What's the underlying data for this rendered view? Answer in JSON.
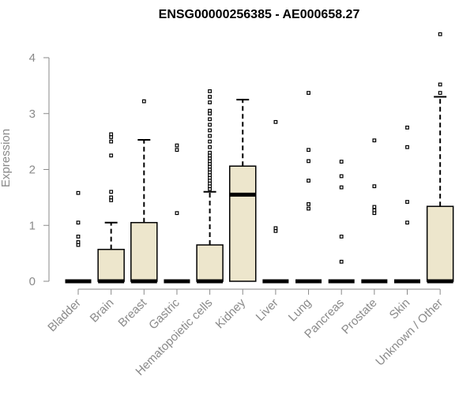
{
  "chart_data": {
    "type": "box",
    "title": "ENSG00000256385 - AE000658.27",
    "ylabel": "Expression",
    "xlabel": "",
    "ylim": [
      0,
      4.5
    ],
    "yticks": [
      "0",
      "1",
      "2",
      "3",
      "4"
    ],
    "grid": false,
    "legend": "none",
    "box_fill": "#ede6cc",
    "line_color": "#000000",
    "axis_color": "#8a8a8a",
    "categories": [
      "Bladder",
      "Brain",
      "Breast",
      "Gastric",
      "Hematopoietic cells",
      "Kidney",
      "Liver",
      "Lung",
      "Pancreas",
      "Prostate",
      "Skin",
      "Unknown / Other"
    ],
    "boxes": [
      {
        "q1": 0,
        "median": 0,
        "q3": 0,
        "whisker_low": 0,
        "whisker_high": 0,
        "outliers": [
          0.65,
          0.7,
          0.8,
          1.05,
          1.58
        ]
      },
      {
        "q1": 0,
        "median": 0,
        "q3": 0.57,
        "whisker_low": 0,
        "whisker_high": 1.05,
        "outliers": [
          1.45,
          1.5,
          1.6,
          2.25,
          2.5,
          2.58,
          2.63
        ]
      },
      {
        "q1": 0,
        "median": 0,
        "q3": 1.05,
        "whisker_low": 0,
        "whisker_high": 2.53,
        "outliers": [
          3.22
        ]
      },
      {
        "q1": 0,
        "median": 0,
        "q3": 0,
        "whisker_low": 0,
        "whisker_high": 0,
        "outliers": [
          1.22,
          2.35,
          2.43
        ]
      },
      {
        "q1": 0,
        "median": 0,
        "q3": 0.65,
        "whisker_low": 0,
        "whisker_high": 1.6,
        "outliers": [
          1.65,
          1.7,
          1.75,
          1.8,
          1.85,
          1.9,
          1.95,
          2.0,
          2.05,
          2.1,
          2.15,
          2.2,
          2.25,
          2.3,
          2.4,
          2.5,
          2.6,
          2.7,
          2.8,
          2.9,
          3.0,
          3.05,
          3.2,
          3.3,
          3.4
        ]
      },
      {
        "q1": 0,
        "median": 1.55,
        "q3": 2.06,
        "whisker_low": 0,
        "whisker_high": 3.25,
        "outliers": []
      },
      {
        "q1": 0,
        "median": 0,
        "q3": 0,
        "whisker_low": 0,
        "whisker_high": 0,
        "outliers": [
          0.9,
          0.95,
          2.85
        ]
      },
      {
        "q1": 0,
        "median": 0,
        "q3": 0,
        "whisker_low": 0,
        "whisker_high": 0,
        "outliers": [
          1.3,
          1.38,
          1.8,
          2.15,
          2.35,
          3.37
        ]
      },
      {
        "q1": 0,
        "median": 0,
        "q3": 0,
        "whisker_low": 0,
        "whisker_high": 0,
        "outliers": [
          0.35,
          0.8,
          1.68,
          1.88,
          2.14
        ]
      },
      {
        "q1": 0,
        "median": 0,
        "q3": 0,
        "whisker_low": 0,
        "whisker_high": 0,
        "outliers": [
          1.22,
          1.27,
          1.33,
          1.7,
          2.52
        ]
      },
      {
        "q1": 0,
        "median": 0,
        "q3": 0,
        "whisker_low": 0,
        "whisker_high": 0,
        "outliers": [
          1.05,
          1.42,
          2.4,
          2.75
        ]
      },
      {
        "q1": 0,
        "median": 0,
        "q3": 1.34,
        "whisker_low": 0,
        "whisker_high": 3.3,
        "outliers": [
          3.37,
          3.52,
          4.42
        ]
      }
    ]
  }
}
